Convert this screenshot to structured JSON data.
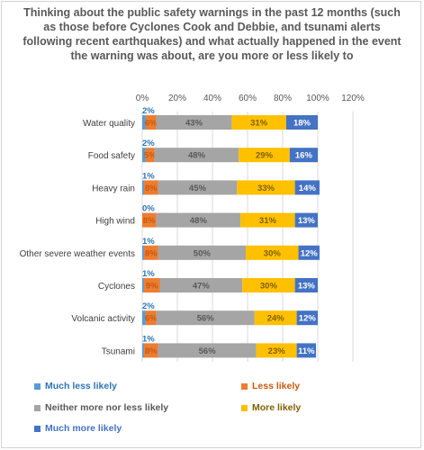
{
  "chart_data": {
    "type": "bar",
    "orientation": "horizontal",
    "stacked": "percent",
    "title": "Thinking about the public safety warnings in the past 12 months (such as those before Cyclones Cook and Debbie, and tsunami alerts following recent earthquakes) and what actually happened in the event the warning was about, are you more or less likely to",
    "categories": [
      "Water quality",
      "Food safety",
      "Heavy rain",
      "High wind",
      "Other severe weather events",
      "Cyclones",
      "Volcanic activity",
      "Tsunami"
    ],
    "series": [
      {
        "name": "Much less likely",
        "color": "#5b9bd5",
        "label_color": "#2e75b6",
        "values": [
          2,
          2,
          1,
          0,
          1,
          1,
          2,
          1
        ],
        "labels": [
          "2%",
          "2%",
          "1%",
          "0%",
          "1%",
          "1%",
          "2%",
          "1%"
        ]
      },
      {
        "name": "Less likely",
        "color": "#ed7d31",
        "label_color": "#c55a11",
        "values": [
          6,
          5,
          8,
          8,
          8,
          9,
          6,
          8
        ],
        "labels": [
          "6%",
          "5%",
          "8%",
          "8%",
          "8%",
          "9%",
          "6%",
          "8%"
        ]
      },
      {
        "name": "Neither more nor less likely",
        "color": "#a5a5a5",
        "label_color": "#595959",
        "values": [
          43,
          48,
          45,
          48,
          50,
          47,
          56,
          56
        ],
        "labels": [
          "43%",
          "48%",
          "45%",
          "48%",
          "50%",
          "47%",
          "56%",
          "56%"
        ]
      },
      {
        "name": "More likely",
        "color": "#ffc000",
        "label_color": "#7f6000",
        "values": [
          31,
          29,
          33,
          31,
          30,
          30,
          24,
          23
        ],
        "labels": [
          "31%",
          "29%",
          "33%",
          "31%",
          "30%",
          "30%",
          "24%",
          "23%"
        ]
      },
      {
        "name": "Much more likely",
        "color": "#4472c4",
        "label_color": "#ffffff",
        "values": [
          18,
          16,
          14,
          13,
          12,
          13,
          12,
          11
        ],
        "labels": [
          "18%",
          "16%",
          "14%",
          "13%",
          "12%",
          "13%",
          "12%",
          "11%"
        ]
      }
    ],
    "xaxis": {
      "ticks": [
        0,
        20,
        40,
        60,
        80,
        100,
        120
      ],
      "tick_labels": [
        "0%",
        "20%",
        "40%",
        "60%",
        "80%",
        "100%",
        "120%"
      ],
      "range": [
        0,
        120
      ]
    },
    "grid": true,
    "legend_position": "bottom"
  }
}
